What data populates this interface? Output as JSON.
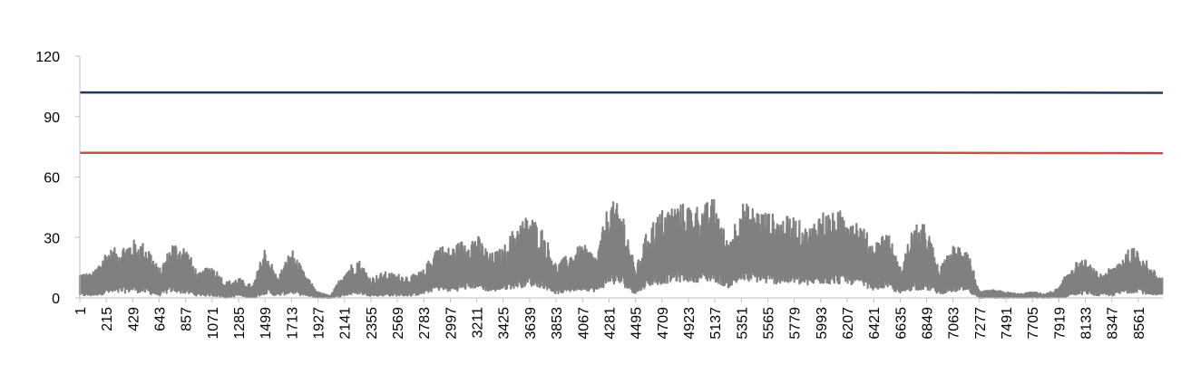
{
  "chart_data": {
    "type": "line",
    "title": "",
    "xlabel": "",
    "ylabel": "",
    "ylim": [
      0,
      120
    ],
    "yticks": [
      0,
      30,
      60,
      90,
      120
    ],
    "xlim": [
      1,
      8760
    ],
    "xticks": [
      1,
      215,
      429,
      643,
      857,
      1071,
      1285,
      1499,
      1713,
      1927,
      2141,
      2355,
      2569,
      2783,
      2997,
      3211,
      3425,
      3639,
      3853,
      4067,
      4281,
      4495,
      4709,
      4923,
      5137,
      5351,
      5565,
      5779,
      5993,
      6207,
      6421,
      6635,
      6849,
      7063,
      7277,
      7491,
      7705,
      7919,
      8133,
      8347,
      8561
    ],
    "grid": false,
    "legend": "none",
    "series": [
      {
        "color": "#1f3a5c",
        "x": [
          1,
          6849,
          8760
        ],
        "y": [
          102,
          102,
          101.8
        ]
      },
      {
        "color": "#c0504d",
        "x": [
          1,
          6849,
          8760
        ],
        "y": [
          72,
          72,
          71.8
        ]
      },
      {
        "color": "#808080",
        "style": "dense-band",
        "envelope_x": [
          1,
          100,
          215,
          300,
          429,
          550,
          643,
          750,
          857,
          960,
          1071,
          1180,
          1285,
          1400,
          1499,
          1600,
          1713,
          1820,
          1927,
          2030,
          2141,
          2250,
          2355,
          2460,
          2569,
          2680,
          2783,
          2890,
          2997,
          3100,
          3211,
          3320,
          3425,
          3530,
          3639,
          3750,
          3853,
          3960,
          4067,
          4180,
          4281,
          4390,
          4495,
          4600,
          4709,
          4820,
          4923,
          5030,
          5137,
          5240,
          5351,
          5460,
          5565,
          5670,
          5779,
          5890,
          5993,
          6100,
          6207,
          6310,
          6421,
          6530,
          6635,
          6740,
          6849,
          6950,
          7063,
          7170,
          7277,
          7380,
          7491,
          7600,
          7705,
          7810,
          7919,
          8020,
          8133,
          8240,
          8347,
          8450,
          8561,
          8660,
          8760
        ],
        "envelope_high": [
          13,
          12,
          24,
          25,
          29,
          27,
          14,
          28,
          26,
          12,
          17,
          8,
          10,
          6,
          26,
          10,
          25,
          12,
          3,
          1,
          14,
          20,
          10,
          13,
          12,
          11,
          14,
          27,
          25,
          29,
          32,
          22,
          25,
          37,
          42,
          34,
          17,
          22,
          27,
          21,
          49,
          45,
          14,
          36,
          44,
          47,
          47,
          46,
          50,
          28,
          48,
          45,
          43,
          40,
          41,
          34,
          44,
          42,
          45,
          38,
          27,
          35,
          15,
          36,
          37,
          14,
          26,
          28,
          3,
          4,
          3,
          2,
          3,
          2,
          5,
          17,
          19,
          12,
          15,
          23,
          26,
          15,
          11
        ],
        "envelope_low": [
          1,
          1,
          2,
          2,
          3,
          2,
          1,
          3,
          2,
          1,
          1,
          0,
          1,
          0,
          2,
          1,
          2,
          1,
          0,
          0,
          1,
          2,
          1,
          1,
          1,
          1,
          2,
          4,
          3,
          4,
          5,
          3,
          4,
          5,
          6,
          5,
          2,
          3,
          4,
          3,
          7,
          6,
          2,
          6,
          7,
          8,
          8,
          8,
          8,
          5,
          8,
          8,
          7,
          7,
          7,
          6,
          7,
          7,
          7,
          6,
          4,
          5,
          2,
          4,
          4,
          2,
          3,
          3,
          0,
          0,
          0,
          0,
          0,
          0,
          0,
          1,
          2,
          1,
          1,
          2,
          3,
          1,
          1
        ]
      }
    ]
  }
}
